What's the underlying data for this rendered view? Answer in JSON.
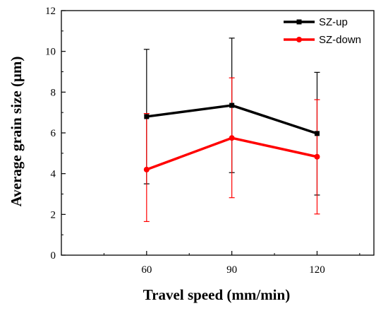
{
  "chart_data": {
    "type": "line",
    "title": "",
    "xlabel": "Travel speed (mm/min)",
    "ylabel": "Average grain size (μm)",
    "x": [
      60,
      90,
      120
    ],
    "x_ticks": [
      "60",
      "90",
      "120"
    ],
    "xlim": [
      30,
      140
    ],
    "ylim": [
      0,
      12
    ],
    "y_ticks": [
      "0",
      "2",
      "4",
      "6",
      "8",
      "10",
      "12"
    ],
    "grid": false,
    "legend_position": "top-right",
    "series": [
      {
        "name": "SZ-up",
        "color": "#000000",
        "marker": "square",
        "values": [
          6.8,
          7.35,
          5.97
        ],
        "error_low": [
          3.5,
          4.05,
          2.95
        ],
        "error_high": [
          10.1,
          10.65,
          8.97
        ]
      },
      {
        "name": "SZ-down",
        "color": "#ff0000",
        "marker": "circle",
        "values": [
          4.2,
          5.75,
          4.83
        ],
        "error_low": [
          1.65,
          2.82,
          2.02
        ],
        "error_high": [
          6.95,
          8.7,
          7.63
        ]
      }
    ]
  }
}
